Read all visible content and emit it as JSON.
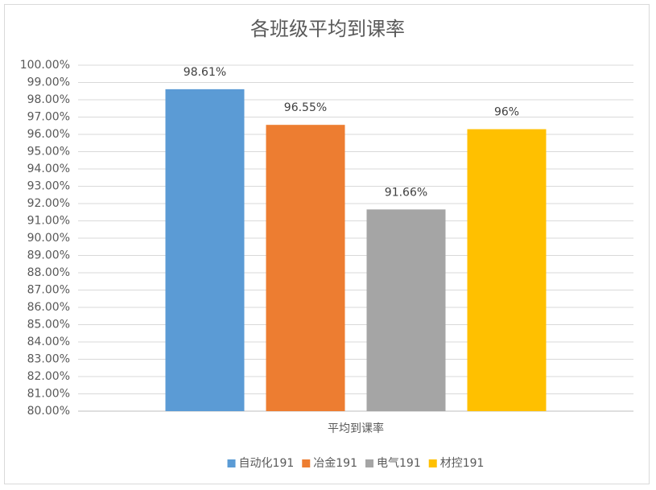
{
  "chart_data": {
    "type": "bar",
    "title": "各班级平均到课率",
    "categories": [
      "平均到课率"
    ],
    "series": [
      {
        "name": "自动化191",
        "color": "#5b9bd5",
        "values": [
          98.61
        ],
        "value_labels": [
          "98.61%"
        ]
      },
      {
        "name": "冶金191",
        "color": "#ed7d31",
        "values": [
          96.55
        ],
        "value_labels": [
          "96.55%"
        ]
      },
      {
        "name": "电气191",
        "color": "#a5a5a5",
        "values": [
          91.66
        ],
        "value_labels": [
          "91.66%"
        ]
      },
      {
        "name": "材控191",
        "color": "#ffc000",
        "values": [
          96.3
        ],
        "value_labels": [
          "96%"
        ]
      }
    ],
    "ylim": [
      80,
      100
    ],
    "yticks": [
      {
        "value": 80,
        "label": "80.00%"
      },
      {
        "value": 81,
        "label": "81.00%"
      },
      {
        "value": 82,
        "label": "82.00%"
      },
      {
        "value": 83,
        "label": "83.00%"
      },
      {
        "value": 84,
        "label": "84.00%"
      },
      {
        "value": 85,
        "label": "85.00%"
      },
      {
        "value": 86,
        "label": "86.00%"
      },
      {
        "value": 87,
        "label": "87.00%"
      },
      {
        "value": 88,
        "label": "88.00%"
      },
      {
        "value": 89,
        "label": "89.00%"
      },
      {
        "value": 90,
        "label": "90.00%"
      },
      {
        "value": 91,
        "label": "91.00%"
      },
      {
        "value": 92,
        "label": "92.00%"
      },
      {
        "value": 93,
        "label": "93.00%"
      },
      {
        "value": 94,
        "label": "94.00%"
      },
      {
        "value": 95,
        "label": "95.00%"
      },
      {
        "value": 96,
        "label": "96.00%"
      },
      {
        "value": 97,
        "label": "97.00%"
      },
      {
        "value": 98,
        "label": "98.00%"
      },
      {
        "value": 99,
        "label": "99.00%"
      },
      {
        "value": 100,
        "label": "100.00%"
      }
    ],
    "grid": true,
    "legend": "bottom"
  }
}
